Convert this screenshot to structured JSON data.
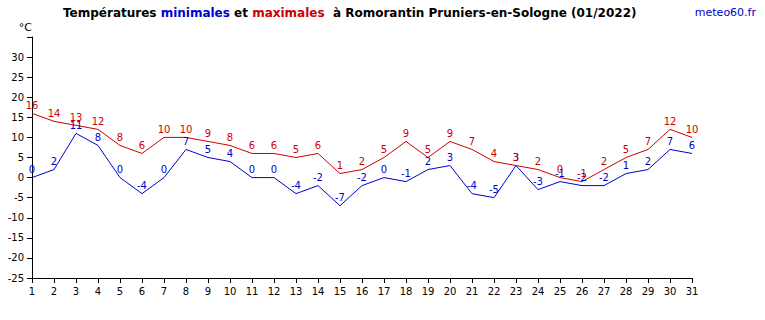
{
  "chart_data": {
    "type": "line",
    "title": "Températures minimales et maximales  à Romorantin Pruniers-en-Sologne (01/2022)",
    "source": "meteo60.fr",
    "y_label": "°C",
    "categories": [
      "1",
      "2",
      "3",
      "4",
      "5",
      "6",
      "7",
      "8",
      "9",
      "10",
      "11",
      "12",
      "13",
      "14",
      "15",
      "16",
      "17",
      "18",
      "19",
      "20",
      "21",
      "22",
      "23",
      "24",
      "25",
      "26",
      "27",
      "28",
      "29",
      "30",
      "31"
    ],
    "series": [
      {
        "name": "minimales",
        "color": "#0000cc",
        "values": [
          0,
          2,
          11,
          8,
          0,
          -4,
          0,
          7,
          5,
          4,
          0,
          0,
          -4,
          -2,
          -7,
          -2,
          0,
          -1,
          2,
          3,
          -4,
          -5,
          3,
          -3,
          -1,
          -2,
          -2,
          1,
          2,
          7,
          6
        ]
      },
      {
        "name": "maximales",
        "color": "#cc0000",
        "values": [
          16,
          14,
          13,
          12,
          8,
          6,
          10,
          10,
          9,
          8,
          6,
          6,
          5,
          6,
          1,
          2,
          5,
          9,
          5,
          9,
          7,
          4,
          3,
          2,
          0,
          -1,
          2,
          5,
          7,
          12,
          10
        ]
      }
    ],
    "ylim": [
      -25,
      35
    ],
    "yticks": [
      -25,
      -20,
      -15,
      -10,
      -5,
      0,
      5,
      10,
      15,
      20,
      25,
      30
    ],
    "grid": false,
    "data_labels": true
  }
}
